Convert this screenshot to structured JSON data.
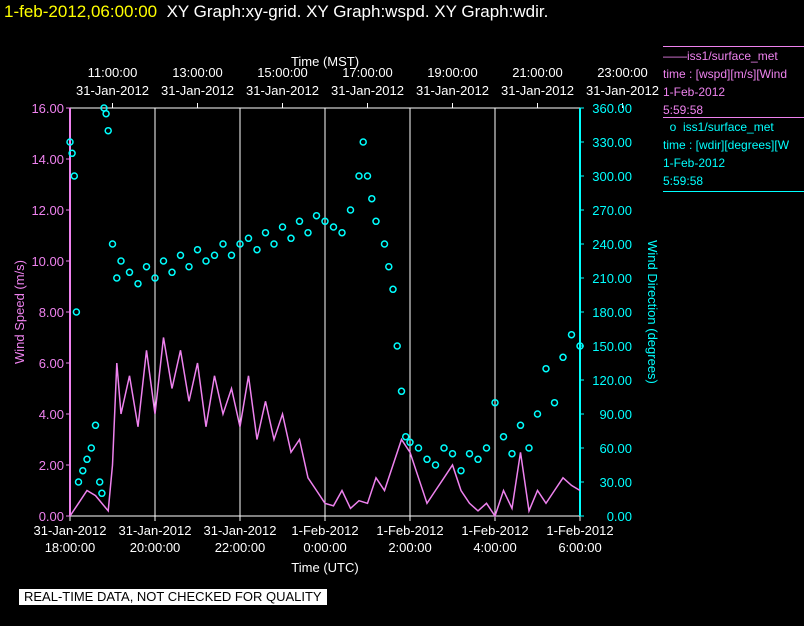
{
  "header": {
    "timestamp": "1-feb-2012,06:00:00",
    "graphs": "XY Graph:xy-grid.  XY Graph:wspd.  XY Graph:wdir."
  },
  "legend": {
    "wspd": {
      "line1": "iss1/surface_met",
      "line2": "time : [wspd][m/s][Wind",
      "line3": "1-Feb-2012",
      "line4": "5:59:58",
      "color": "#ee82ee"
    },
    "wdir": {
      "line1": "iss1/surface_met",
      "line2": "time : [wdir][degrees][W",
      "line3": "1-Feb-2012",
      "line4": "5:59:58",
      "color": "#00ffff"
    }
  },
  "note": "REAL-TIME DATA, NOT CHECKED FOR QUALITY",
  "chart_data": {
    "type": "line",
    "top_axis": {
      "label": "Time (MST)",
      "ticks": [
        {
          "time": "11:00:00",
          "date": "31-Jan-2012"
        },
        {
          "time": "13:00:00",
          "date": "31-Jan-2012"
        },
        {
          "time": "15:00:00",
          "date": "31-Jan-2012"
        },
        {
          "time": "17:00:00",
          "date": "31-Jan-2012"
        },
        {
          "time": "19:00:00",
          "date": "31-Jan-2012"
        },
        {
          "time": "21:00:00",
          "date": "31-Jan-2012"
        },
        {
          "time": "23:00:00",
          "date": "31-Jan-2012"
        }
      ]
    },
    "bottom_axis": {
      "label": "Time (UTC)",
      "ticks": [
        {
          "date": "31-Jan-2012",
          "time": "18:00:00"
        },
        {
          "date": "31-Jan-2012",
          "time": "20:00:00"
        },
        {
          "date": "31-Jan-2012",
          "time": "22:00:00"
        },
        {
          "date": "1-Feb-2012",
          "time": "0:00:00"
        },
        {
          "date": "1-Feb-2012",
          "time": "2:00:00"
        },
        {
          "date": "1-Feb-2012",
          "time": "4:00:00"
        },
        {
          "date": "1-Feb-2012",
          "time": "6:00:00"
        }
      ],
      "xlim_hours_utc": [
        18,
        30
      ]
    },
    "left_axis": {
      "label": "Wind Speed (m/s)",
      "ticks": [
        "0.00",
        "2.00",
        "4.00",
        "6.00",
        "8.00",
        "10.00",
        "12.00",
        "14.00",
        "16.00"
      ],
      "ylim": [
        0,
        16
      ]
    },
    "right_axis": {
      "label": "Wind Direction (degrees)",
      "ticks": [
        "0.00",
        "30.00",
        "60.00",
        "90.00",
        "120.00",
        "150.00",
        "180.00",
        "210.00",
        "240.00",
        "270.00",
        "300.00",
        "330.00",
        "360.00"
      ],
      "ylim": [
        0,
        360
      ]
    },
    "grid": true,
    "series": [
      {
        "name": "iss1/surface_met time : [wspd][m/s]",
        "axis": "left",
        "style": "line",
        "color": "#ee82ee",
        "points": [
          [
            18.0,
            0.0
          ],
          [
            18.2,
            0.5
          ],
          [
            18.4,
            1.0
          ],
          [
            18.6,
            0.8
          ],
          [
            18.9,
            0.2
          ],
          [
            19.0,
            2.0
          ],
          [
            19.1,
            6.0
          ],
          [
            19.2,
            4.0
          ],
          [
            19.4,
            5.5
          ],
          [
            19.6,
            3.5
          ],
          [
            19.8,
            6.5
          ],
          [
            20.0,
            4.0
          ],
          [
            20.2,
            7.0
          ],
          [
            20.4,
            5.0
          ],
          [
            20.6,
            6.5
          ],
          [
            20.8,
            4.5
          ],
          [
            21.0,
            6.0
          ],
          [
            21.2,
            3.5
          ],
          [
            21.4,
            5.5
          ],
          [
            21.6,
            4.0
          ],
          [
            21.8,
            5.0
          ],
          [
            22.0,
            3.5
          ],
          [
            22.2,
            5.5
          ],
          [
            22.4,
            3.0
          ],
          [
            22.6,
            4.5
          ],
          [
            22.8,
            3.0
          ],
          [
            23.0,
            4.0
          ],
          [
            23.2,
            2.5
          ],
          [
            23.4,
            3.0
          ],
          [
            23.6,
            1.5
          ],
          [
            23.8,
            1.0
          ],
          [
            24.0,
            0.5
          ],
          [
            24.2,
            0.4
          ],
          [
            24.4,
            1.0
          ],
          [
            24.6,
            0.3
          ],
          [
            24.8,
            0.6
          ],
          [
            25.0,
            0.5
          ],
          [
            25.2,
            1.5
          ],
          [
            25.4,
            1.0
          ],
          [
            25.6,
            2.0
          ],
          [
            25.8,
            3.0
          ],
          [
            26.0,
            2.5
          ],
          [
            26.2,
            1.5
          ],
          [
            26.4,
            0.5
          ],
          [
            26.6,
            1.0
          ],
          [
            26.8,
            1.5
          ],
          [
            27.0,
            2.0
          ],
          [
            27.2,
            1.0
          ],
          [
            27.4,
            0.5
          ],
          [
            27.6,
            0.2
          ],
          [
            27.8,
            0.5
          ],
          [
            28.0,
            0.0
          ],
          [
            28.2,
            1.0
          ],
          [
            28.4,
            0.3
          ],
          [
            28.6,
            2.5
          ],
          [
            28.8,
            0.2
          ],
          [
            29.0,
            1.0
          ],
          [
            29.2,
            0.5
          ],
          [
            29.4,
            1.0
          ],
          [
            29.6,
            1.5
          ],
          [
            29.8,
            1.2
          ],
          [
            30.0,
            1.0
          ]
        ]
      },
      {
        "name": "iss1/surface_met time : [wdir][degrees]",
        "axis": "right",
        "style": "circles",
        "color": "#00ffff",
        "points": [
          [
            18.0,
            330
          ],
          [
            18.05,
            320
          ],
          [
            18.1,
            300
          ],
          [
            18.15,
            180
          ],
          [
            18.2,
            30
          ],
          [
            18.3,
            40
          ],
          [
            18.4,
            50
          ],
          [
            18.5,
            60
          ],
          [
            18.6,
            80
          ],
          [
            18.7,
            30
          ],
          [
            18.75,
            20
          ],
          [
            18.8,
            360
          ],
          [
            18.85,
            355
          ],
          [
            18.9,
            340
          ],
          [
            19.0,
            240
          ],
          [
            19.1,
            210
          ],
          [
            19.2,
            225
          ],
          [
            19.4,
            215
          ],
          [
            19.6,
            205
          ],
          [
            19.8,
            220
          ],
          [
            20.0,
            210
          ],
          [
            20.2,
            225
          ],
          [
            20.4,
            215
          ],
          [
            20.6,
            230
          ],
          [
            20.8,
            220
          ],
          [
            21.0,
            235
          ],
          [
            21.2,
            225
          ],
          [
            21.4,
            230
          ],
          [
            21.6,
            240
          ],
          [
            21.8,
            230
          ],
          [
            22.0,
            240
          ],
          [
            22.2,
            245
          ],
          [
            22.4,
            235
          ],
          [
            22.6,
            250
          ],
          [
            22.8,
            240
          ],
          [
            23.0,
            255
          ],
          [
            23.2,
            245
          ],
          [
            23.4,
            260
          ],
          [
            23.6,
            250
          ],
          [
            23.8,
            265
          ],
          [
            24.0,
            260
          ],
          [
            24.2,
            255
          ],
          [
            24.4,
            250
          ],
          [
            24.6,
            270
          ],
          [
            24.8,
            300
          ],
          [
            24.9,
            330
          ],
          [
            25.0,
            300
          ],
          [
            25.1,
            280
          ],
          [
            25.2,
            260
          ],
          [
            25.4,
            240
          ],
          [
            25.5,
            220
          ],
          [
            25.6,
            200
          ],
          [
            25.7,
            150
          ],
          [
            25.8,
            110
          ],
          [
            25.9,
            70
          ],
          [
            26.0,
            65
          ],
          [
            26.2,
            60
          ],
          [
            26.4,
            50
          ],
          [
            26.6,
            45
          ],
          [
            26.8,
            60
          ],
          [
            27.0,
            55
          ],
          [
            27.2,
            40
          ],
          [
            27.4,
            55
          ],
          [
            27.6,
            50
          ],
          [
            27.8,
            60
          ],
          [
            28.0,
            100
          ],
          [
            28.2,
            70
          ],
          [
            28.4,
            55
          ],
          [
            28.6,
            80
          ],
          [
            28.8,
            60
          ],
          [
            29.0,
            90
          ],
          [
            29.2,
            130
          ],
          [
            29.4,
            100
          ],
          [
            29.6,
            140
          ],
          [
            29.8,
            160
          ],
          [
            30.0,
            150
          ]
        ]
      }
    ]
  }
}
